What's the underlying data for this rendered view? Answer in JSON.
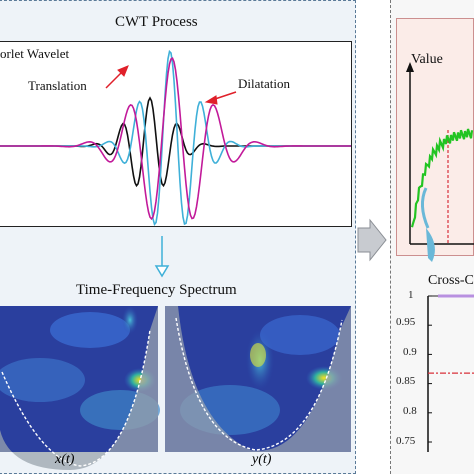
{
  "left": {
    "cwt_title": "CWT Process",
    "wavelet_label": "orlet Wavelet",
    "translation_label": "Translation",
    "dilatation_label": "Dilatation",
    "spectrum_title": "Time-Frequency Spectrum",
    "x_label": "x(t)",
    "y_label": "y(t)"
  },
  "right": {
    "value_label": "Value",
    "cross_label": "Cross-C",
    "y_ticks": [
      "1",
      "0.95",
      "0.9",
      "0.85",
      "0.8",
      "0.75"
    ],
    "threshold": 0.868
  },
  "colors": {
    "black_wave": "#111111",
    "cyan_wave": "#3fb0d8",
    "magenta_wave": "#c21a9a",
    "arrow_red": "#e0202a",
    "signal_green": "#22c422",
    "panel_blue": "#5a7a98"
  }
}
